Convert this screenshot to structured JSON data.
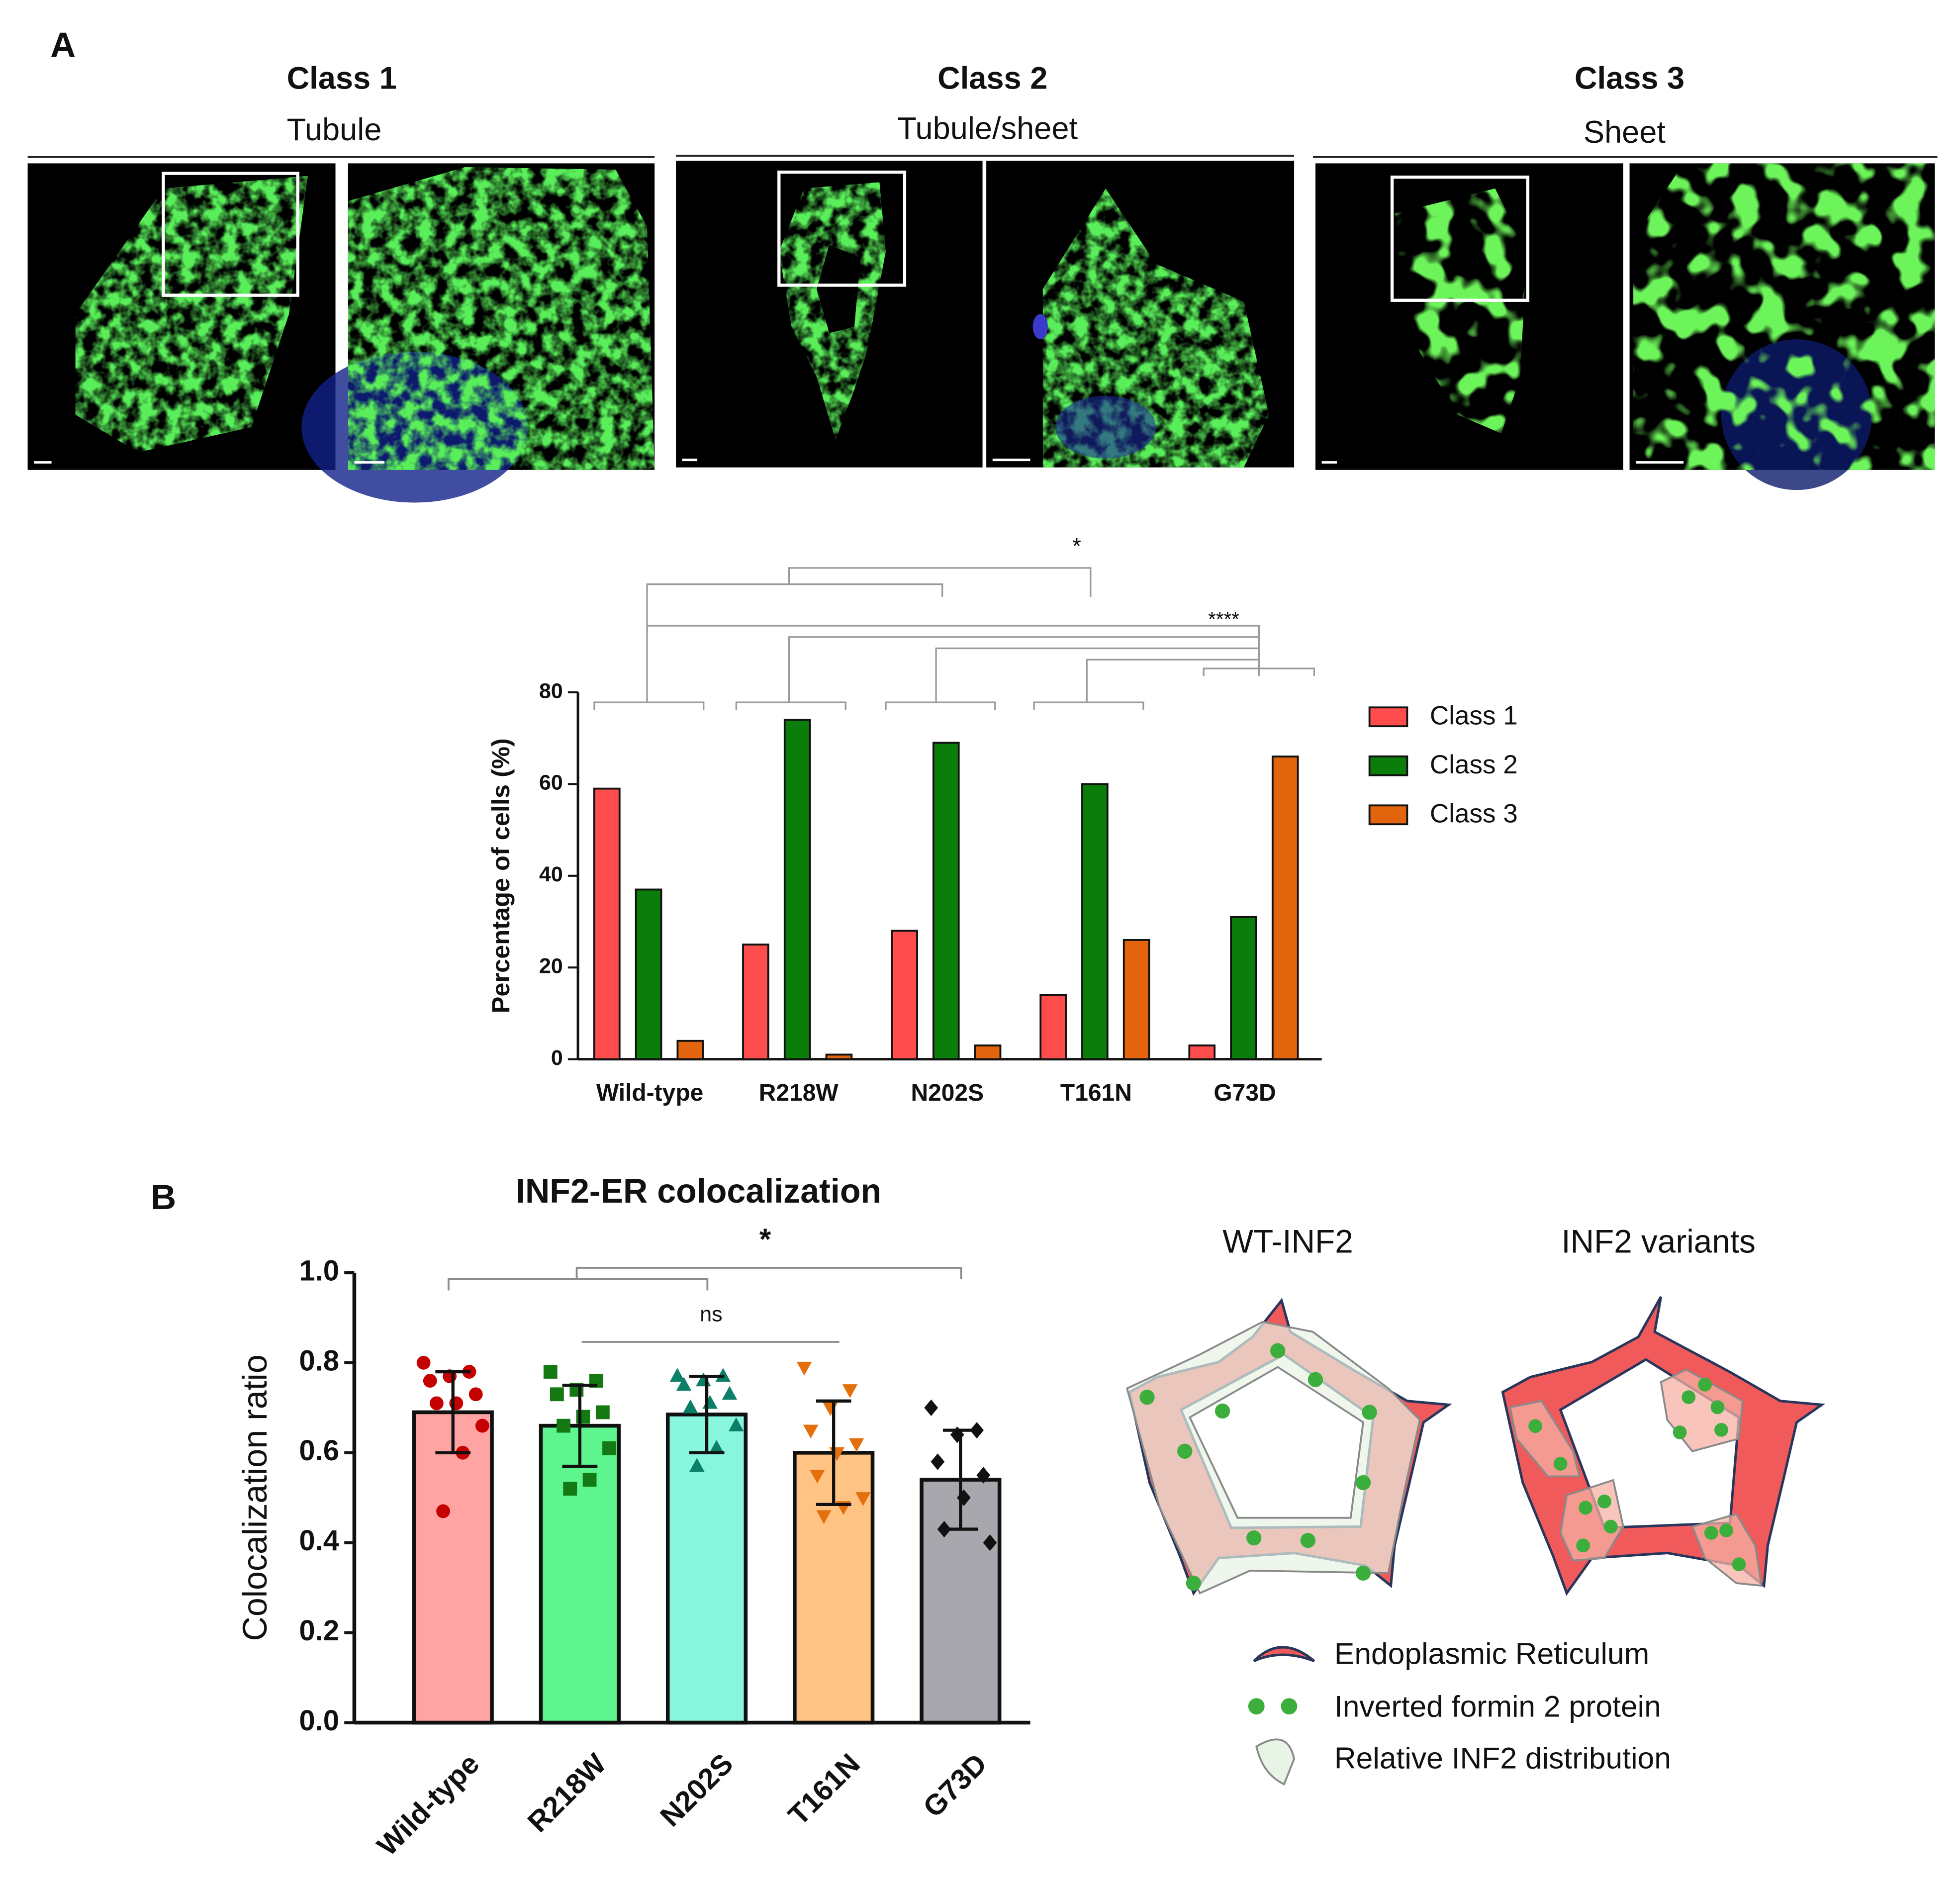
{
  "panel_labels": [
    "A",
    "B"
  ],
  "microscopy": [
    {
      "title": "Class 1",
      "subtitle": "Tubule"
    },
    {
      "title": "Class 2",
      "subtitle": "Tubule/sheet"
    },
    {
      "title": "Class 3",
      "subtitle": "Sheet"
    }
  ],
  "chart_data": [
    {
      "type": "bar",
      "ylabel": "Percentage of cells (%)",
      "categories": [
        "Wild-type",
        "R218W",
        "N202S",
        "T161N",
        "G73D"
      ],
      "series": [
        {
          "name": "Class 1",
          "color": "#ff4d4d",
          "values": [
            59,
            25,
            28,
            14,
            3
          ]
        },
        {
          "name": "Class 2",
          "color": "#0b7d0b",
          "values": [
            37,
            74,
            69,
            60,
            31
          ]
        },
        {
          "name": "Class 3",
          "color": "#e2650e",
          "values": [
            4,
            1,
            3,
            26,
            66
          ]
        }
      ],
      "ylim": [
        0,
        80
      ],
      "yticks": [
        0,
        20,
        40,
        60,
        80
      ],
      "legend": "right",
      "annotations": [
        "*",
        "****"
      ]
    },
    {
      "type": "bar",
      "title": "INF2-ER colocalization",
      "ylabel": "Colocalization ratio",
      "categories": [
        "Wild-type",
        "R218W",
        "N202S",
        "T161N",
        "G73D"
      ],
      "values": [
        0.69,
        0.66,
        0.685,
        0.6,
        0.54
      ],
      "errors": [
        0.09,
        0.09,
        0.085,
        0.115,
        0.11
      ],
      "colors": [
        "#ffa3a3",
        "#5ef58e",
        "#88f5dd",
        "#ffc384",
        "#a9a7ae"
      ],
      "points": [
        [
          0.8,
          0.78,
          0.77,
          0.76,
          0.73,
          0.71,
          0.71,
          0.66,
          0.6,
          0.47
        ],
        [
          0.78,
          0.76,
          0.74,
          0.73,
          0.69,
          0.68,
          0.66,
          0.61,
          0.54,
          0.52
        ],
        [
          0.77,
          0.77,
          0.76,
          0.75,
          0.73,
          0.71,
          0.7,
          0.66,
          0.61,
          0.57
        ],
        [
          0.79,
          0.74,
          0.7,
          0.65,
          0.62,
          0.6,
          0.55,
          0.5,
          0.48,
          0.46
        ],
        [
          0.7,
          0.65,
          0.64,
          0.58,
          0.55,
          0.5,
          0.43,
          0.4
        ]
      ],
      "point_colors": [
        "#c40000",
        "#137a13",
        "#0b7f68",
        "#e3700d",
        "#111111"
      ],
      "markers": [
        "circle",
        "square",
        "triangle",
        "triangle-down",
        "diamond"
      ],
      "ylim": [
        0,
        1
      ],
      "yticks": [
        {
          "value": 0,
          "label": "0.0"
        },
        {
          "value": 0.2,
          "label": "0.2"
        },
        {
          "value": 0.4,
          "label": "0.4"
        },
        {
          "value": 0.6,
          "label": "0.6"
        },
        {
          "value": 0.8,
          "label": "0.8"
        },
        {
          "value": 1,
          "label": "1.0"
        }
      ],
      "annotations": [
        "*",
        "ns"
      ]
    }
  ],
  "diagram": {
    "titles": [
      "WT-INF2",
      "INF2 variants"
    ],
    "legend": [
      "Endoplasmic Reticulum",
      "Inverted formin 2 protein",
      "Relative INF2 distribution"
    ]
  }
}
